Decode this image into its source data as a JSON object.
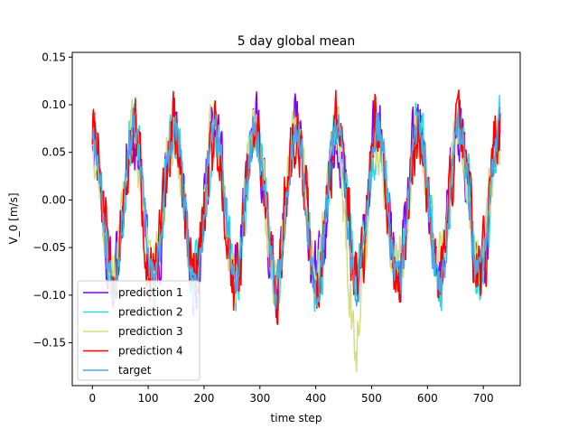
{
  "chart_data": {
    "type": "line",
    "title": "5 day global mean",
    "xlabel": "time step",
    "ylabel": "V_0 [m/s]",
    "xlim": [
      -36,
      766
    ],
    "ylim": [
      -0.195,
      0.155
    ],
    "xticks": [
      0,
      100,
      200,
      300,
      400,
      500,
      600,
      700
    ],
    "yticks": [
      -0.15,
      -0.1,
      -0.05,
      0.0,
      0.05,
      0.1,
      0.15
    ],
    "xtick_labels": [
      "0",
      "100",
      "200",
      "300",
      "400",
      "500",
      "600",
      "700"
    ],
    "ytick_labels": [
      "−0.15",
      "−0.10",
      "−0.05",
      "0.00",
      "0.05",
      "0.10",
      "0.15"
    ],
    "legend_position": "lower-left",
    "series": [
      {
        "name": "prediction 1",
        "color": "#7f00ff",
        "seed": 11,
        "phase": 0.05,
        "noise": 0.028,
        "amp": 0.078
      },
      {
        "name": "prediction 2",
        "color": "#29dbe3",
        "seed": 23,
        "phase": -0.05,
        "noise": 0.026,
        "amp": 0.08
      },
      {
        "name": "prediction 3",
        "color": "#d2de82",
        "seed": 37,
        "phase": 0.1,
        "noise": 0.025,
        "amp": 0.075
      },
      {
        "name": "prediction 4",
        "color": "#ff0000",
        "seed": 51,
        "phase": 0.0,
        "noise": 0.03,
        "amp": 0.078
      },
      {
        "name": "target",
        "color": "#4aa6e8",
        "seed": 67,
        "phase": 0.0,
        "noise": 0.018,
        "amp": 0.08
      }
    ],
    "x_range": [
      0,
      730
    ],
    "period": 73,
    "n_points": 731
  }
}
